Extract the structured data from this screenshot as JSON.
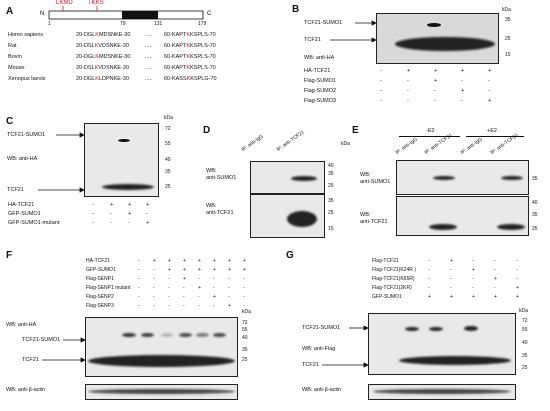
{
  "panels": {
    "A": "A",
    "B": "B",
    "C": "C",
    "D": "D",
    "E": "E",
    "F": "F",
    "G": "G"
  },
  "panel_a": {
    "n": "N",
    "c": "C",
    "site1": "LKMD",
    "site2": "TKKS",
    "positions": [
      "1",
      "79",
      "131",
      "179"
    ],
    "species": [
      {
        "name": "Homo sapiens",
        "left_pre": "20-DGL",
        "left_red": "K",
        "left_post": "MDSNKE-30",
        "dots": ".....",
        "right_pre": "60-KAPT",
        "right_red": "K",
        "right_post": "KSPLS-70"
      },
      {
        "name": "Rat",
        "left_pre": "20-DSL",
        "left_red": "K",
        "left_post": "VDSNKE-30",
        "dots": ".....",
        "right_pre": "60-KAPT",
        "right_red": "K",
        "right_post": "KSPLS-70"
      },
      {
        "name": "Bovin",
        "left_pre": "20-DGL",
        "left_red": "K",
        "left_post": "MDSNKE-30",
        "dots": ".....",
        "right_pre": "60-KAPT",
        "right_red": "K",
        "right_post": "KSPLS-70"
      },
      {
        "name": "Mouse",
        "left_pre": "20-DSL",
        "left_red": "K",
        "left_post": "VDSNKE-30",
        "dots": ".....",
        "right_pre": "60-KAPT",
        "right_red": "K",
        "right_post": "KSPLS-70"
      },
      {
        "name": "Xenopus laevis",
        "left_pre": "20-DGL",
        "left_red": "K",
        "left_post": "LDPNKE-30",
        "dots": ".....",
        "right_pre": "60-KASS",
        "right_red": "K",
        "right_post": "KSPLG-70"
      }
    ]
  },
  "panel_b": {
    "kda": "kDa",
    "markers": [
      "35",
      "25",
      "15"
    ],
    "band_labels": [
      "TCF21-SUMO1",
      "TCF21"
    ],
    "wb": "WB: anti-HA",
    "rows": [
      {
        "label": "HA-TCF21",
        "signs": [
          "-",
          "+",
          "+",
          "+",
          "+"
        ]
      },
      {
        "label": "Flag-SUMO1",
        "signs": [
          "-",
          "-",
          "+",
          "-",
          "-"
        ]
      },
      {
        "label": "Flag-SUMO2",
        "signs": [
          "-",
          "-",
          "-",
          "+",
          "-"
        ]
      },
      {
        "label": "Flag-SUMO3",
        "signs": [
          "-",
          "-",
          "-",
          "-",
          "+"
        ]
      }
    ]
  },
  "panel_c": {
    "kda": "kDa",
    "markers": [
      "72",
      "55",
      "40",
      "35",
      "25"
    ],
    "band_labels": [
      "TCF21-SUMO1",
      "TCF21"
    ],
    "wb": "WB: anti-HA",
    "rows": [
      {
        "label": "HA-TCF21",
        "signs": [
          "-",
          "+",
          "+",
          "+"
        ]
      },
      {
        "label": "GFP-SUMO1",
        "signs": [
          "-",
          "-",
          "+",
          "-"
        ]
      },
      {
        "label": "GFP-SUMO1-mutant",
        "signs": [
          "-",
          "-",
          "-",
          "+"
        ]
      }
    ]
  },
  "panel_d": {
    "kda": "kDa",
    "lanes": [
      "IP: anti-IgG",
      "IP: anti-TCF21"
    ],
    "top_markers": [
      "40",
      "35",
      "25"
    ],
    "bottom_markers": [
      "35",
      "25",
      "15"
    ],
    "wb_top": [
      "WB:",
      "anti-SUMO1"
    ],
    "wb_bottom": [
      "WB:",
      "anti-TCF21"
    ]
  },
  "panel_e": {
    "groups": [
      "-E2",
      "+E2"
    ],
    "lanes": [
      "IP: anti-IgG",
      "IP: anti-TCF21",
      "IP: anti-IgG",
      "IP: anti-TCF21"
    ],
    "top_markers": [
      "35"
    ],
    "bottom_markers": [
      "40",
      "35",
      "25"
    ],
    "wb_top": [
      "WB:",
      "anti-SUMO1"
    ],
    "wb_bottom": [
      "WB:",
      "anti-TCF21"
    ]
  },
  "panel_f": {
    "kda": "kDa",
    "rows": [
      {
        "label": "HA-TCF21",
        "signs": [
          "-",
          "+",
          "+",
          "+",
          "+",
          "+",
          "+",
          "+"
        ]
      },
      {
        "label": "GFP-SUMO1",
        "signs": [
          "-",
          "-",
          "+",
          "+",
          "+",
          "+",
          "+",
          "+"
        ]
      },
      {
        "label": "Flag-SENP1",
        "signs": [
          "-",
          "-",
          "-",
          "+",
          "-",
          "-",
          "-",
          "-"
        ]
      },
      {
        "label": "Flag-SENP1 mutant",
        "signs": [
          "-",
          "-",
          "-",
          "-",
          "+",
          "-",
          "-",
          "-"
        ]
      },
      {
        "label": "Flag-SENP2",
        "signs": [
          "-",
          "-",
          "-",
          "-",
          "-",
          "+",
          "-",
          "-"
        ]
      },
      {
        "label": "Flag-SENP3",
        "signs": [
          "-",
          "-",
          "-",
          "-",
          "-",
          "-",
          "+",
          "-"
        ]
      }
    ],
    "wb": "WB: anti-HA",
    "band_labels": [
      "TCF21-SUMO1",
      "TCF21"
    ],
    "markers": [
      "72",
      "55",
      "40",
      "35",
      "25"
    ],
    "actin": "WB: anti-β-actin"
  },
  "panel_g": {
    "kda": "kDa",
    "rows": [
      {
        "label": "Flag-TCF21",
        "signs": [
          "-",
          "+",
          "-",
          "-",
          "-"
        ]
      },
      {
        "label": "Flag-TCF21(K24R )",
        "signs": [
          "-",
          "-",
          "+",
          "-",
          "-"
        ]
      },
      {
        "label": "Flag-TCF21(K65R)",
        "signs": [
          "-",
          "-",
          "-",
          "+",
          "-"
        ]
      },
      {
        "label": "Flag-TCF21(2KR)",
        "signs": [
          "-",
          "-",
          "-",
          "-",
          "+"
        ]
      },
      {
        "label": "GFP-SUMO1",
        "signs": [
          "+",
          "+",
          "+",
          "+",
          "+"
        ]
      }
    ],
    "band_labels": [
      "TCF21-SUMO1",
      "TCF21"
    ],
    "wb": "WB: anti-Flag",
    "markers": [
      "72",
      "55",
      "40",
      "35",
      "25"
    ],
    "actin": "WB: anti-β-actin"
  },
  "colors": {
    "mutation_site": "#d0112b",
    "blot_bg": "#d9d9d9",
    "band": "#111111"
  }
}
